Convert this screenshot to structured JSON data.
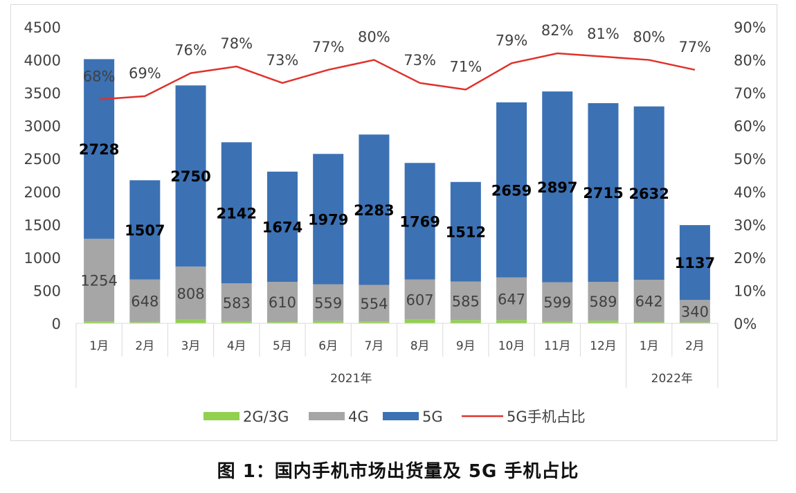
{
  "caption": "图 1：国内手机市场出货量及 5G 手机占比",
  "colors": {
    "g2g3g": "#92d050",
    "g4g": "#a6a6a6",
    "g5g": "#3c71b4",
    "line": "#e0312a",
    "grid": "#d9d9d9"
  },
  "chart_data": {
    "type": "bar",
    "stacked": true,
    "categories": [
      "1月",
      "2月",
      "3月",
      "4月",
      "5月",
      "6月",
      "7月",
      "8月",
      "9月",
      "10月",
      "11月",
      "12月",
      "1月",
      "2月"
    ],
    "groups": [
      {
        "label": "2021年",
        "count": 12
      },
      {
        "label": "2022年",
        "count": 2
      }
    ],
    "series": [
      {
        "name": "2G/3G",
        "axis": "left",
        "values": [
          30,
          18,
          55,
          25,
          20,
          35,
          30,
          60,
          50,
          50,
          25,
          40,
          20,
          15
        ]
      },
      {
        "name": "4G",
        "axis": "left",
        "values": [
          1254,
          648,
          808,
          583,
          610,
          559,
          554,
          607,
          585,
          647,
          599,
          589,
          642,
          340
        ]
      },
      {
        "name": "5G",
        "axis": "left",
        "values": [
          2728,
          1507,
          2750,
          2142,
          1674,
          1979,
          2283,
          1769,
          1512,
          2659,
          2897,
          2715,
          2632,
          1137
        ]
      },
      {
        "name": "5G手机占比",
        "type": "line",
        "axis": "right",
        "values": [
          68,
          69,
          76,
          78,
          73,
          77,
          80,
          73,
          71,
          79,
          82,
          81,
          80,
          77
        ]
      }
    ],
    "data_labels_4g": [
      "1254",
      "648",
      "808",
      "583",
      "610",
      "559",
      "554",
      "607",
      "585",
      "647",
      "599",
      "589",
      "642",
      "340"
    ],
    "data_labels_5g": [
      "2728",
      "1507",
      "2750",
      "2142",
      "1674",
      "1979",
      "2283",
      "1769",
      "1512",
      "2659",
      "2897",
      "2715",
      "2632",
      "1137"
    ],
    "data_labels_ratio": [
      "68%",
      "69%",
      "76%",
      "78%",
      "73%",
      "77%",
      "80%",
      "73%",
      "71%",
      "79%",
      "82%",
      "81%",
      "80%",
      "77%"
    ],
    "y_left": {
      "min": 0,
      "max": 4500,
      "step": 500,
      "ticks": [
        "0",
        "500",
        "1000",
        "1500",
        "2000",
        "2500",
        "3000",
        "3500",
        "4000",
        "4500"
      ]
    },
    "y_right": {
      "min": 0,
      "max": 90,
      "step": 10,
      "ticks": [
        "0%",
        "10%",
        "20%",
        "30%",
        "40%",
        "50%",
        "60%",
        "70%",
        "80%",
        "90%"
      ]
    },
    "legend": {
      "placement": "bottom",
      "labels": [
        "2G/3G",
        "4G",
        "5G",
        "5G手机占比"
      ]
    },
    "grid": false
  }
}
